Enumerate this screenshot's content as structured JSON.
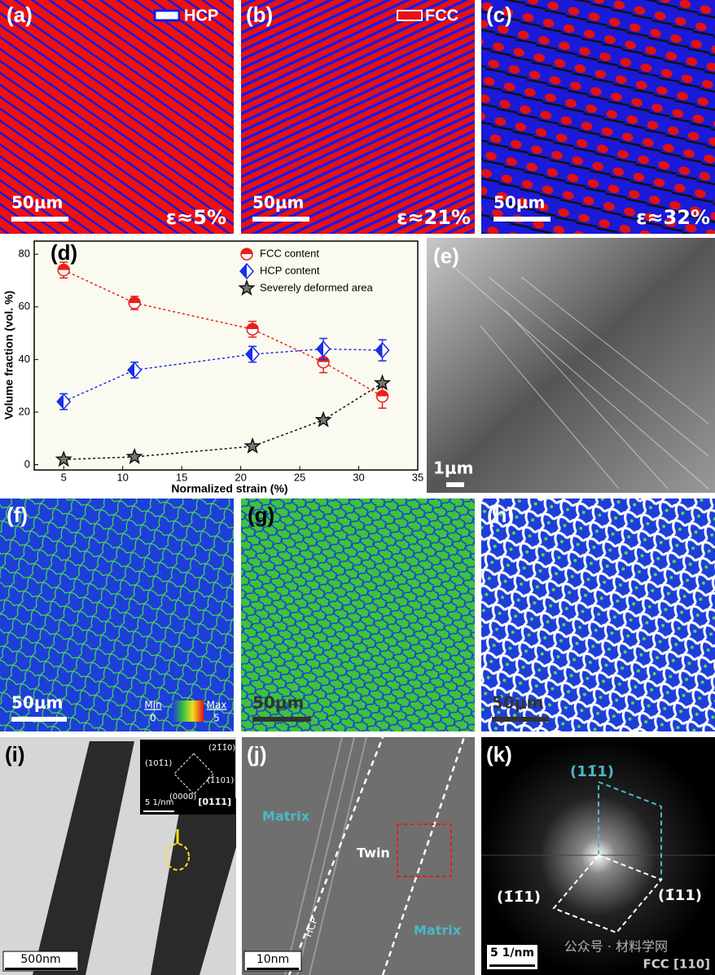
{
  "figure": {
    "a": {
      "label": "(a)",
      "key": "HCP",
      "scale_bar": "50μm",
      "strain": "ε≈5%"
    },
    "b": {
      "label": "(b)",
      "key": "FCC",
      "scale_bar": "50μm",
      "strain": "ε≈21%"
    },
    "c": {
      "label": "(c)",
      "scale_bar": "50μm",
      "strain": "ε≈32%"
    },
    "e": {
      "label": "(e)",
      "scale_bar": "1μm"
    },
    "f": {
      "label": "(f)",
      "scale_bar": "50μm",
      "colorbar": {
        "min_label": "Min",
        "min": 0,
        "max_label": "Max",
        "max": 5
      }
    },
    "g": {
      "label": "(g)",
      "scale_bar": "50μm"
    },
    "h": {
      "label": "(h)",
      "scale_bar": "50μm"
    },
    "i": {
      "label": "(i)",
      "scale_bar": "500nm",
      "inset": {
        "spots": [
          "(21̄1̄0)",
          "(101̄1)",
          "(1̄101)",
          "(0000)"
        ],
        "scale_bar": "5 1/nm",
        "zone_axis": "[011̄1]"
      }
    },
    "j": {
      "label": "(j)",
      "scale_bar": "10nm",
      "annotations": [
        "Matrix",
        "Twin",
        "Matrix",
        "HCP"
      ]
    },
    "k": {
      "label": "(k)",
      "scale_bar": "5 1/nm",
      "spots": [
        "(11̄1)",
        "(1̄1̄1)",
        "(1̄11)"
      ],
      "zone_axis": "FCC [110]"
    }
  },
  "watermark": "公众号 · 材料学网",
  "chart_data": {
    "type": "line",
    "label": "(d)",
    "x_label": "Normalized strain (%)",
    "y_label": "Volume fraction (vol. %)",
    "x": [
      5,
      11,
      21,
      27,
      32
    ],
    "series": [
      {
        "name": "FCC content",
        "color": "#e8201a",
        "marker": "half-circle",
        "values": [
          74,
          61.5,
          51.5,
          39,
          26
        ],
        "errors": [
          3,
          2.5,
          3,
          4,
          4.5
        ]
      },
      {
        "name": "HCP content",
        "color": "#1a2ee8",
        "marker": "half-diamond",
        "values": [
          24,
          36,
          42,
          44,
          43.5
        ],
        "errors": [
          3,
          3,
          3,
          4,
          4
        ]
      },
      {
        "name": "Severely deformed area",
        "color": "#111111",
        "marker": "star",
        "values": [
          2,
          3,
          7,
          17,
          31
        ]
      }
    ],
    "xlim": [
      2.5,
      35
    ],
    "xticks": [
      5,
      10,
      15,
      20,
      25,
      30,
      35
    ],
    "ylim": [
      -2,
      85
    ],
    "yticks": [
      0,
      20,
      40,
      60,
      80
    ],
    "legend": "upper right"
  }
}
